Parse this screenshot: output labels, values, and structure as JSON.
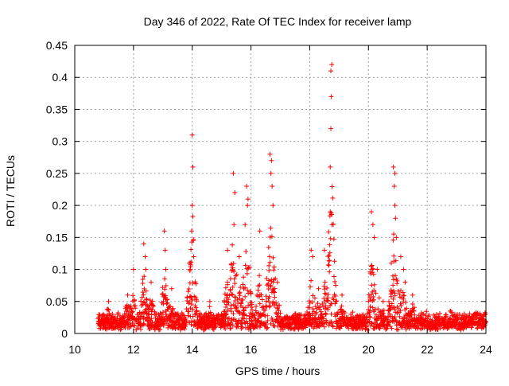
{
  "chart_data": {
    "type": "scatter",
    "title": "Day 346 of 2022, Rate Of TEC Index for receiver lamp",
    "xlabel": "GPS time / hours",
    "ylabel": "ROTI / TECUs",
    "xlim": [
      10,
      24
    ],
    "ylim": [
      0,
      0.45
    ],
    "xticks": [
      10,
      12,
      14,
      16,
      18,
      20,
      22,
      24
    ],
    "xtick_labels": [
      "10",
      "12",
      "14",
      "16",
      "18",
      "20",
      "22",
      "24"
    ],
    "yticks": [
      0,
      0.05,
      0.1,
      0.15,
      0.2,
      0.25,
      0.3,
      0.35,
      0.4,
      0.45
    ],
    "ytick_labels": [
      "0",
      "0.05",
      "0.1",
      "0.15",
      "0.2",
      "0.25",
      "0.3",
      "0.35",
      "0.4",
      "0.45"
    ],
    "grid": true,
    "marker": "+",
    "marker_color": "#ff0000",
    "data_span": [
      10.8,
      24
    ],
    "series": [
      {
        "values": [
          [
            12.35,
            0.14
          ],
          [
            12.4,
            0.12
          ],
          [
            12.42,
            0.1
          ],
          [
            13.05,
            0.16
          ],
          [
            13.08,
            0.13
          ],
          [
            13.1,
            0.1
          ],
          [
            14.0,
            0.31
          ],
          [
            14.02,
            0.26
          ],
          [
            14.0,
            0.2
          ],
          [
            13.98,
            0.16
          ],
          [
            14.05,
            0.12
          ],
          [
            15.4,
            0.25
          ],
          [
            15.45,
            0.22
          ],
          [
            15.42,
            0.17
          ],
          [
            15.85,
            0.23
          ],
          [
            15.9,
            0.21
          ],
          [
            15.88,
            0.2
          ],
          [
            15.8,
            0.17
          ],
          [
            16.65,
            0.28
          ],
          [
            16.7,
            0.27
          ],
          [
            16.68,
            0.25
          ],
          [
            16.72,
            0.23
          ],
          [
            16.75,
            0.2
          ],
          [
            18.05,
            0.13
          ],
          [
            18.1,
            0.12
          ],
          [
            18.75,
            0.42
          ],
          [
            18.72,
            0.41
          ],
          [
            18.73,
            0.37
          ],
          [
            18.72,
            0.32
          ],
          [
            18.7,
            0.26
          ],
          [
            18.7,
            0.19
          ],
          [
            20.1,
            0.19
          ],
          [
            20.15,
            0.17
          ],
          [
            20.2,
            0.15
          ],
          [
            20.3,
            0.1
          ],
          [
            20.85,
            0.26
          ],
          [
            20.9,
            0.25
          ],
          [
            20.88,
            0.23
          ],
          [
            20.9,
            0.2
          ],
          [
            20.92,
            0.18
          ],
          [
            20.95,
            0.15
          ],
          [
            21.1,
            0.12
          ],
          [
            21.2,
            0.1
          ],
          [
            21.25,
            0.08
          ],
          [
            11.15,
            0.05
          ],
          [
            11.8,
            0.06
          ],
          [
            12.0,
            0.1
          ],
          [
            12.6,
            0.08
          ],
          [
            13.3,
            0.07
          ],
          [
            13.9,
            0.11
          ],
          [
            14.6,
            0.05
          ],
          [
            15.2,
            0.13
          ],
          [
            15.6,
            0.12
          ],
          [
            16.3,
            0.16
          ],
          [
            16.9,
            0.08
          ],
          [
            17.5,
            0.02
          ],
          [
            18.3,
            0.07
          ],
          [
            18.5,
            0.13
          ],
          [
            19.1,
            0.06
          ],
          [
            19.4,
            0.03
          ],
          [
            20.5,
            0.05
          ],
          [
            21.5,
            0.06
          ],
          [
            22.0,
            0.02
          ],
          [
            22.8,
            0.035
          ],
          [
            23.3,
            0.02
          ],
          [
            23.9,
            0.01
          ]
        ]
      }
    ]
  }
}
